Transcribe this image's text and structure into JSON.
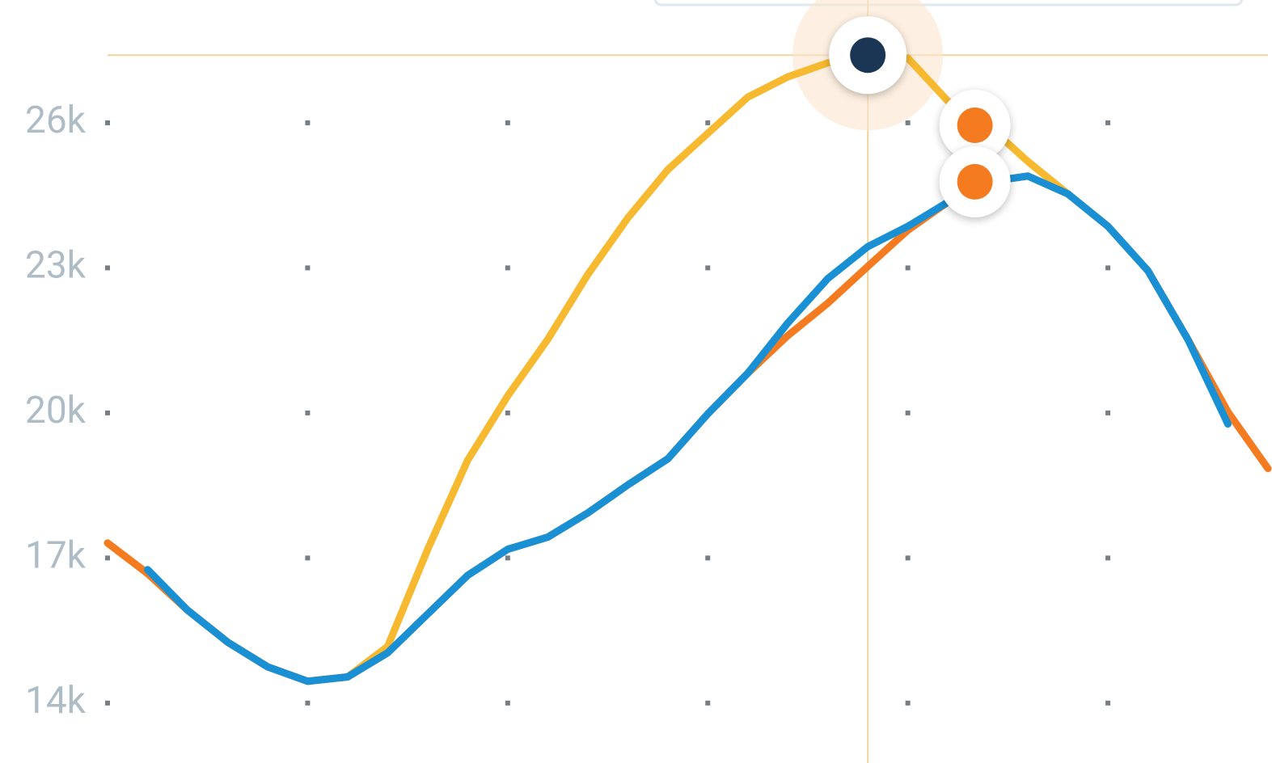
{
  "chart_data": {
    "type": "line",
    "categories": [
      null,
      null,
      null,
      null,
      null,
      null,
      null,
      null,
      null,
      null,
      null,
      null,
      null,
      null,
      null,
      null,
      null,
      null,
      null,
      null,
      null,
      null,
      null,
      null,
      null,
      null,
      null,
      null,
      null,
      null
    ],
    "series": [
      {
        "color": "#f6b92f",
        "values": [
          17310,
          16680,
          15920,
          15260,
          14750,
          14450,
          14540,
          15170,
          17180,
          19020,
          20350,
          21520,
          22860,
          24030,
          25030,
          25780,
          26530,
          26950,
          27240,
          27400,
          27340,
          26450,
          25950,
          25200,
          24530,
          null,
          null,
          null,
          null,
          null
        ]
      },
      {
        "color": "#f47b20",
        "values": [
          17310,
          16680,
          15920,
          15260,
          14750,
          14450,
          14540,
          15040,
          15840,
          16640,
          17180,
          17430,
          17930,
          18510,
          19050,
          19980,
          20820,
          21600,
          22270,
          23030,
          23780,
          24360,
          24780,
          24900,
          24530,
          23860,
          22940,
          21520,
          20020,
          18850
        ]
      },
      {
        "color": "#1a90d4",
        "values": [
          null,
          16760,
          15920,
          15260,
          14750,
          14450,
          14540,
          15040,
          15840,
          16640,
          17180,
          17430,
          17930,
          18510,
          19050,
          19980,
          20820,
          21860,
          22780,
          23440,
          23860,
          24360,
          24780,
          24900,
          24530,
          23860,
          22940,
          21520,
          19770,
          null
        ]
      }
    ],
    "ylim": [
      12760,
      28540
    ],
    "yticks": [
      {
        "value": 14000,
        "label": "14k"
      },
      {
        "value": 17000,
        "label": "17k"
      },
      {
        "value": 20000,
        "label": "20k"
      },
      {
        "value": 23000,
        "label": "23k"
      },
      {
        "value": 26000,
        "label": "26k"
      }
    ],
    "grid": "dots",
    "highlight_index": 19,
    "marker_index": 22
  }
}
